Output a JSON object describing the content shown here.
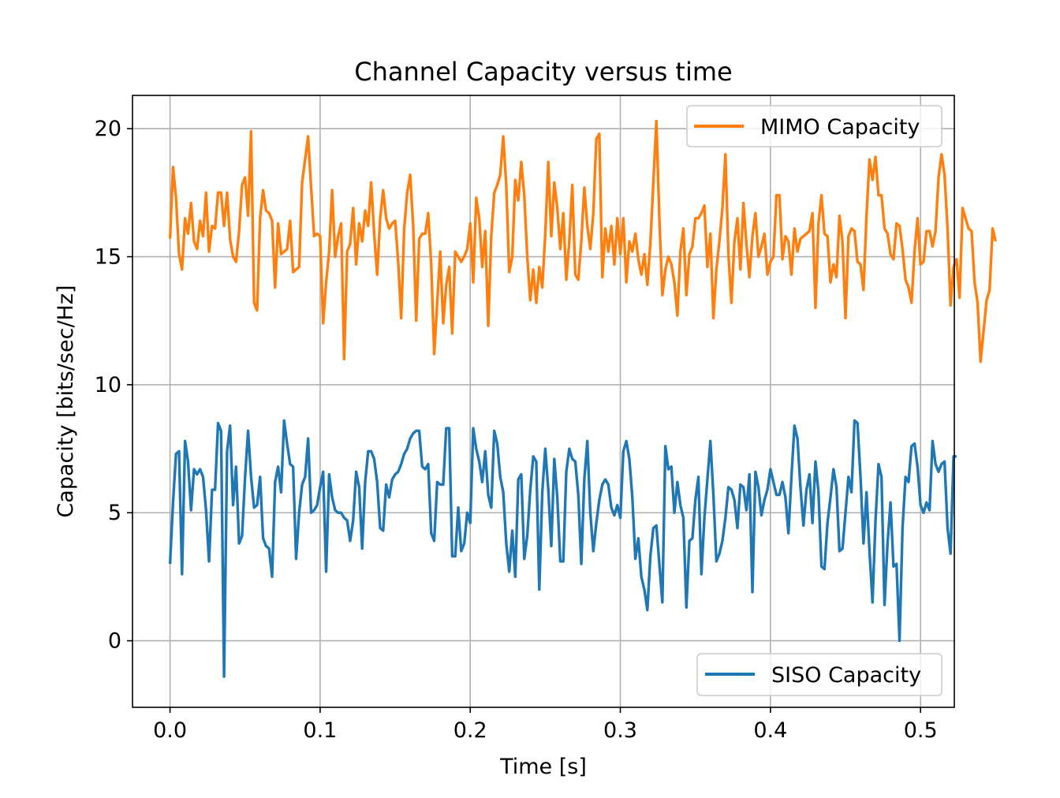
{
  "chart_data": {
    "type": "line",
    "title": "Channel Capacity versus time",
    "xlabel": "Time [s]",
    "ylabel": "Capacity [bits/sec/Hz]",
    "xlim": [
      -0.025,
      0.5225
    ],
    "ylim": [
      -2.6,
      21.3
    ],
    "x_ticks": [
      0.0,
      0.1,
      0.2,
      0.3,
      0.4,
      0.5
    ],
    "x_tick_labels": [
      "0.0",
      "0.1",
      "0.2",
      "0.3",
      "0.4",
      "0.5"
    ],
    "y_ticks": [
      0,
      5,
      10,
      15,
      20
    ],
    "y_tick_labels": [
      "0",
      "5",
      "10",
      "15",
      "20"
    ],
    "grid": true,
    "x_start": 0.0,
    "x_step": 0.002,
    "series": [
      {
        "name": "MIMO Capacity",
        "color": "#ff7f0e",
        "legend_position": "upper right",
        "values": [
          15.7,
          18.5,
          17.3,
          15.1,
          14.5,
          16.5,
          15.9,
          17.1,
          15.6,
          15.3,
          16.4,
          15.8,
          17.5,
          15.2,
          16.2,
          16.1,
          17.5,
          17.5,
          16.2,
          17.5,
          15.7,
          15.0,
          14.8,
          16.0,
          17.8,
          18.1,
          16.6,
          19.9,
          13.2,
          12.9,
          16.5,
          17.6,
          16.8,
          16.7,
          16.4,
          13.8,
          16.3,
          15.1,
          15.2,
          15.3,
          16.4,
          14.4,
          14.5,
          14.6,
          17.9,
          18.8,
          19.7,
          17.7,
          15.8,
          15.9,
          15.8,
          12.4,
          14.0,
          15.2,
          17.6,
          15.0,
          15.8,
          16.3,
          11.0,
          15.2,
          15.5,
          16.9,
          14.7,
          16.3,
          15.6,
          16.8,
          16.2,
          17.9,
          15.9,
          14.3,
          16.5,
          17.6,
          16.5,
          16.1,
          16.3,
          16.4,
          14.8,
          12.6,
          16.1,
          17.5,
          18.2,
          16.2,
          12.5,
          15.7,
          15.9,
          15.9,
          16.7,
          14.7,
          11.2,
          13.2,
          15.2,
          12.4,
          13.9,
          14.6,
          12.0,
          15.2,
          15.0,
          14.8,
          15.0,
          15.3,
          16.3,
          14.0,
          17.3,
          16.5,
          14.6,
          16.0,
          12.3,
          15.8,
          17.5,
          17.8,
          18.2,
          19.7,
          17.8,
          14.4,
          15.0,
          18.0,
          17.2,
          18.7,
          17.4,
          15.0,
          13.3,
          14.5,
          13.2,
          14.6,
          13.8,
          15.9,
          18.7,
          15.8,
          17.9,
          16.9,
          15.3,
          16.7,
          14.1,
          15.6,
          17.8,
          14.3,
          14.1,
          15.6,
          17.7,
          16.2,
          15.3,
          16.7,
          19.6,
          19.8,
          14.2,
          16.1,
          15.2,
          16.2,
          14.7,
          16.5,
          15.1,
          16.5,
          14.0,
          15.6,
          15.2,
          15.9,
          14.9,
          14.3,
          15.1,
          13.9,
          15.5,
          17.9,
          20.3,
          16.5,
          13.5,
          14.5,
          15.0,
          14.7,
          14.0,
          12.7,
          15.2,
          16.1,
          13.5,
          15.1,
          15.4,
          16.5,
          16.5,
          16.7,
          17.0,
          14.6,
          15.9,
          12.6,
          14.5,
          15.6,
          16.9,
          19.0,
          15.1,
          13.2,
          15.6,
          16.5,
          14.5,
          17.1,
          15.5,
          14.2,
          15.8,
          16.7,
          15.0,
          15.4,
          15.9,
          14.3,
          14.8,
          15.0,
          17.4,
          17.4,
          14.9,
          15.8,
          15.6,
          14.3,
          16.1,
          15.2,
          15.7,
          15.8,
          15.9,
          16.0,
          16.7,
          13.0,
          16.3,
          17.4,
          15.9,
          15.8,
          14.0,
          14.7,
          14.2,
          16.6,
          15.6,
          12.6,
          15.8,
          16.1,
          16.0,
          14.8,
          14.7,
          13.7,
          16.6,
          18.8,
          18.0,
          18.9,
          17.4,
          17.4,
          16.1,
          15.9,
          15.1,
          14.9,
          16.3,
          16.2,
          15.3,
          14.1,
          13.8,
          13.2,
          15.2,
          16.5,
          14.7,
          14.8,
          16.0,
          16.0,
          15.4,
          16.0,
          18.1,
          19.0,
          18.2,
          16.1,
          13.1,
          14.6,
          14.9,
          13.4,
          16.9,
          16.5,
          16.1,
          16.0,
          14.0,
          13.2,
          10.9,
          12.1,
          13.3,
          13.7,
          16.1,
          15.6
        ],
        "x_label_note": ""
      },
      {
        "name": "SISO Capacity",
        "color": "#1f77b4",
        "legend_position": "lower right",
        "values": [
          3.0,
          5.4,
          7.3,
          7.4,
          2.6,
          7.8,
          7.0,
          5.1,
          6.7,
          6.5,
          6.7,
          6.4,
          5.1,
          3.1,
          5.9,
          5.9,
          8.5,
          8.2,
          -1.4,
          7.4,
          8.4,
          5.3,
          6.8,
          3.8,
          4.1,
          6.4,
          8.2,
          6.4,
          5.2,
          5.3,
          6.4,
          4.0,
          3.7,
          3.6,
          2.5,
          6.2,
          6.8,
          5.8,
          8.6,
          7.7,
          6.9,
          6.8,
          3.2,
          5.0,
          6.1,
          6.4,
          7.9,
          5.0,
          5.1,
          5.3,
          6.0,
          6.6,
          2.7,
          6.5,
          5.6,
          5.1,
          5.0,
          5.0,
          4.8,
          4.7,
          3.9,
          4.7,
          6.6,
          6.0,
          3.6,
          6.2,
          7.4,
          7.4,
          7.1,
          6.2,
          4.4,
          4.3,
          6.1,
          5.6,
          6.3,
          6.5,
          6.6,
          6.9,
          7.3,
          7.5,
          7.9,
          8.1,
          8.2,
          8.2,
          6.8,
          6.7,
          6.9,
          4.2,
          3.9,
          6.2,
          6.1,
          6.1,
          8.3,
          8.3,
          3.3,
          3.3,
          5.2,
          3.5,
          3.8,
          5.0,
          4.6,
          8.3,
          7.5,
          7.0,
          6.2,
          7.4,
          5.7,
          5.2,
          8.2,
          7.7,
          6.4,
          5.8,
          3.8,
          2.7,
          4.3,
          2.5,
          6.3,
          6.5,
          3.2,
          4.1,
          5.9,
          7.2,
          7.0,
          2.0,
          5.8,
          7.5,
          5.9,
          3.7,
          7.1,
          5.6,
          3.1,
          3.1,
          6.6,
          7.5,
          7.1,
          7.0,
          5.7,
          3.0,
          6.3,
          7.8,
          5.0,
          3.5,
          4.6,
          5.5,
          6.1,
          6.3,
          6.1,
          5.2,
          4.9,
          5.3,
          4.8,
          7.4,
          7.8,
          7.1,
          5.6,
          3.2,
          4.0,
          2.5,
          2.0,
          1.2,
          3.3,
          4.4,
          4.5,
          3.0,
          1.5,
          7.6,
          6.7,
          6.8,
          5.0,
          6.2,
          5.3,
          4.8,
          1.3,
          3.9,
          4.0,
          5.5,
          6.4,
          2.6,
          4.8,
          6.3,
          7.8,
          5.7,
          3.1,
          3.4,
          3.9,
          4.8,
          6.0,
          5.9,
          5.5,
          4.4,
          6.1,
          6.0,
          5.1,
          6.5,
          1.9,
          6.6,
          6.0,
          4.9,
          5.5,
          5.9,
          6.7,
          6.2,
          5.7,
          5.7,
          6.2,
          5.6,
          4.2,
          6.4,
          8.4,
          7.9,
          6.0,
          4.5,
          5.9,
          6.5,
          4.6,
          7.0,
          5.8,
          2.9,
          2.8,
          4.6,
          5.6,
          6.7,
          6.0,
          3.5,
          3.6,
          5.0,
          6.4,
          5.8,
          8.6,
          8.5,
          6.4,
          3.8,
          5.8,
          3.5,
          1.5,
          4.7,
          6.9,
          6.4,
          1.4,
          3.8,
          5.4,
          2.9,
          3.0,
          0.0,
          4.4,
          6.4,
          6.2,
          7.6,
          7.7,
          6.8,
          5.3,
          5.0,
          5.4,
          5.1,
          7.8,
          6.9,
          6.6,
          6.9,
          7.0,
          4.4,
          3.4,
          7.2,
          7.2
        ],
        "x_label_note": ""
      }
    ]
  }
}
